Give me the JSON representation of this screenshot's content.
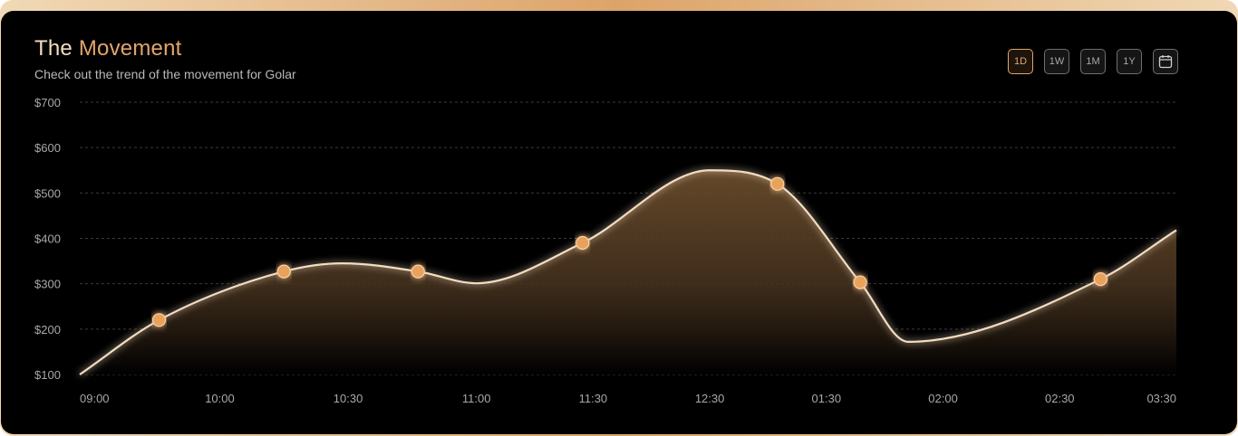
{
  "header": {
    "title_main": "The",
    "title_accent": "Movement",
    "subtitle": "Check out the trend of the movement for Golar"
  },
  "controls": {
    "ranges": [
      "1D",
      "1W",
      "1M",
      "1Y"
    ],
    "active": "1D",
    "calendar_icon": "calendar-icon"
  },
  "colors": {
    "accent": "#e3a56a",
    "line": "#f3dcc0",
    "point": "#e9a25c",
    "area_top": "#6a4c2c",
    "grid": "#3a3a3a"
  },
  "chart_data": {
    "type": "area",
    "y_ticks": [
      "$700",
      "$600",
      "$500",
      "$400",
      "$300",
      "$200",
      "$100"
    ],
    "y_tick_values": [
      700,
      600,
      500,
      400,
      300,
      200,
      100
    ],
    "ylim": [
      100,
      700
    ],
    "x_ticks": [
      "09:00",
      "10:00",
      "10:30",
      "11:00",
      "11:30",
      "12:30",
      "01:30",
      "02:00",
      "02:30",
      "03:30"
    ],
    "x_tick_index": [
      0,
      1.2,
      2.3,
      3.4,
      4.4,
      5.4,
      6.4,
      7.4,
      8.4,
      9.4
    ],
    "xlim": [
      0,
      9.4
    ],
    "grid": true,
    "line": [
      {
        "x": 0,
        "y": 100
      },
      {
        "x": 0.68,
        "y": 220
      },
      {
        "x": 1.75,
        "y": 327
      },
      {
        "x": 2.25,
        "y": 345
      },
      {
        "x": 2.9,
        "y": 327
      },
      {
        "x": 3.4,
        "y": 301
      },
      {
        "x": 4.31,
        "y": 390
      },
      {
        "x": 5.4,
        "y": 550
      },
      {
        "x": 5.98,
        "y": 520
      },
      {
        "x": 6.69,
        "y": 303
      },
      {
        "x": 7.1,
        "y": 172
      },
      {
        "x": 8.75,
        "y": 310
      },
      {
        "x": 9.4,
        "y": 418
      }
    ],
    "points": [
      {
        "x": 0.68,
        "y": 220
      },
      {
        "x": 1.75,
        "y": 327
      },
      {
        "x": 2.9,
        "y": 327
      },
      {
        "x": 4.31,
        "y": 390
      },
      {
        "x": 5.98,
        "y": 520
      },
      {
        "x": 6.69,
        "y": 303
      },
      {
        "x": 8.75,
        "y": 310
      }
    ]
  }
}
